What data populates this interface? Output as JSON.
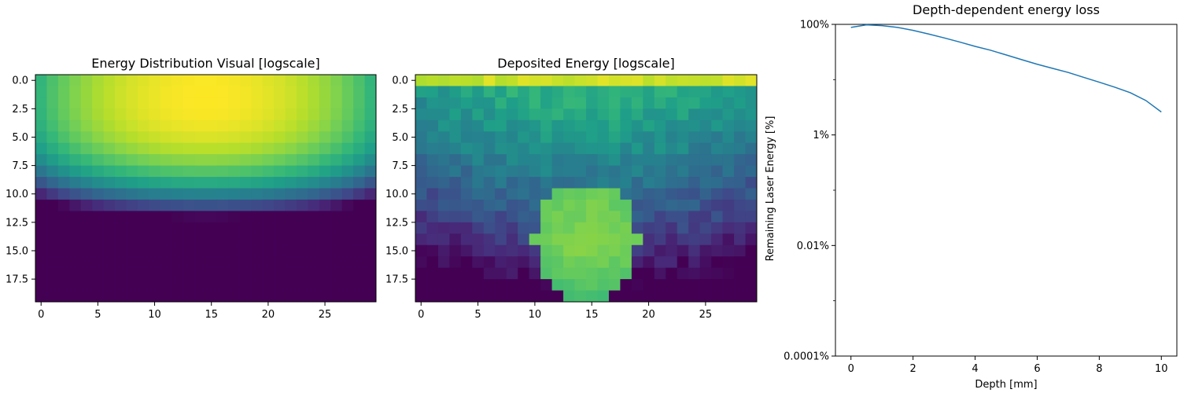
{
  "chart_data": [
    {
      "type": "heatmap",
      "title": "Energy Distribution Visual [logscale]",
      "xlabel": "",
      "ylabel": "",
      "rows": 20,
      "cols": 30,
      "x_ticks": [
        "0",
        "5",
        "10",
        "15",
        "20",
        "25"
      ],
      "y_ticks": [
        "0.0",
        "2.5",
        "5.0",
        "7.5",
        "10.0",
        "12.5",
        "15.0",
        "17.5"
      ],
      "x_tick_values": [
        0,
        5,
        10,
        15,
        20,
        25
      ],
      "y_tick_values": [
        0,
        2.5,
        5,
        7.5,
        10,
        12.5,
        15,
        17.5
      ],
      "colormap": "viridis",
      "scale": "log",
      "pattern": "energy peaks near top center (row ~1-2, col ~14) and decays smoothly toward the bottom and side edges"
    },
    {
      "type": "heatmap",
      "title": "Deposited Energy [logscale]",
      "xlabel": "",
      "ylabel": "",
      "rows": 20,
      "cols": 30,
      "x_ticks": [
        "0",
        "5",
        "10",
        "15",
        "20",
        "25"
      ],
      "y_ticks": [
        "0.0",
        "2.5",
        "5.0",
        "7.5",
        "10.0",
        "12.5",
        "15.0",
        "17.5"
      ],
      "x_tick_values": [
        0,
        5,
        10,
        15,
        20,
        25
      ],
      "y_tick_values": [
        0,
        2.5,
        5,
        7.5,
        10,
        12.5,
        15,
        17.5
      ],
      "colormap": "viridis",
      "scale": "log",
      "pattern": "bright surface row at depth 0, noisy teal background decaying with depth, bright circular inclusion centered near row 14, col 14"
    },
    {
      "type": "line",
      "title": "Depth-dependent energy loss",
      "xlabel": "Depth [mm]",
      "ylabel": "Remaining Laser Energy [%]",
      "x_ticks": [
        "0",
        "2",
        "4",
        "6",
        "8",
        "10"
      ],
      "y_ticks": [
        "100%",
        "1%",
        "0.01%",
        "0.0001%"
      ],
      "xlim": [
        -0.5,
        10.5
      ],
      "ylim_log10_percent": [
        -4,
        2
      ],
      "yscale": "log",
      "line_color": "#1f77b4",
      "series": [
        {
          "x": [
            0,
            0.5,
            1,
            1.5,
            2,
            2.5,
            3,
            3.5,
            4,
            4.5,
            5,
            5.5,
            6,
            6.5,
            7,
            7.5,
            8,
            8.5,
            9,
            9.5,
            10
          ],
          "y": [
            88,
            98,
            95,
            88,
            78,
            67,
            57,
            48,
            40,
            34,
            28,
            23,
            19,
            16,
            13.5,
            11,
            9,
            7.3,
            5.8,
            4.2,
            2.6
          ]
        }
      ]
    }
  ]
}
